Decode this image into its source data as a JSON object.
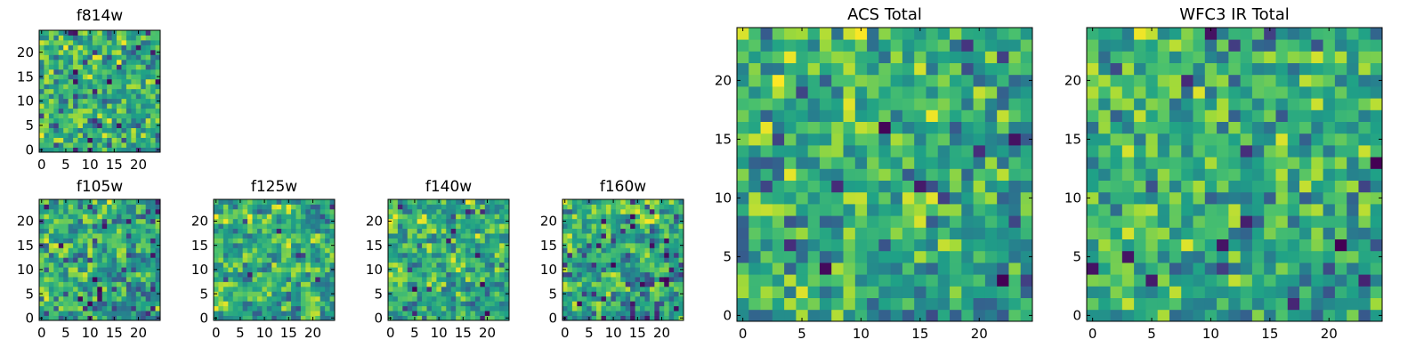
{
  "colors": {
    "colormap": [
      "#440154",
      "#46327e",
      "#365c8d",
      "#277f8e",
      "#1fa187",
      "#4ac16d",
      "#a0da39",
      "#fde725"
    ],
    "frame": "#000000",
    "background": "#ffffff"
  },
  "chart_data": [
    {
      "type": "heatmap",
      "title": "f814w",
      "grid_size": 25,
      "xlim": [
        0,
        24
      ],
      "ylim": [
        0,
        24
      ],
      "xticks": [
        "0",
        "5",
        "10",
        "15",
        "20"
      ],
      "yticks": [
        "0",
        "5",
        "10",
        "15",
        "20"
      ],
      "seed": 11,
      "cell_scale": 1,
      "low_bias": 0.05
    },
    {
      "type": "heatmap",
      "title": "f105w",
      "grid_size": 25,
      "xlim": [
        0,
        24
      ],
      "ylim": [
        0,
        24
      ],
      "xticks": [
        "0",
        "5",
        "10",
        "15",
        "20"
      ],
      "yticks": [
        "0",
        "5",
        "10",
        "15",
        "20"
      ],
      "seed": 23,
      "cell_scale": 2,
      "low_bias": 0.1
    },
    {
      "type": "heatmap",
      "title": "f125w",
      "grid_size": 25,
      "xlim": [
        0,
        24
      ],
      "ylim": [
        0,
        24
      ],
      "xticks": [
        "0",
        "5",
        "10",
        "15",
        "20"
      ],
      "yticks": [
        "0",
        "5",
        "10",
        "15",
        "20"
      ],
      "seed": 37,
      "cell_scale": 2,
      "low_bias": 0.02
    },
    {
      "type": "heatmap",
      "title": "f140w",
      "grid_size": 25,
      "xlim": [
        0,
        24
      ],
      "ylim": [
        0,
        24
      ],
      "xticks": [
        "0",
        "5",
        "10",
        "15",
        "20"
      ],
      "yticks": [
        "0",
        "5",
        "10",
        "15",
        "20"
      ],
      "seed": 41,
      "cell_scale": 2,
      "low_bias": 0.04
    },
    {
      "type": "heatmap",
      "title": "f160w",
      "grid_size": 25,
      "xlim": [
        0,
        24
      ],
      "ylim": [
        0,
        24
      ],
      "xticks": [
        "0",
        "5",
        "10",
        "15",
        "20"
      ],
      "yticks": [
        "0",
        "5",
        "10",
        "15",
        "20"
      ],
      "seed": 53,
      "cell_scale": 2,
      "low_bias": 0.12
    },
    {
      "type": "heatmap",
      "title": "ACS Total",
      "grid_size": 25,
      "xlim": [
        0,
        24
      ],
      "ylim": [
        0,
        24
      ],
      "xticks": [
        "0",
        "5",
        "10",
        "15",
        "20"
      ],
      "yticks": [
        "0",
        "5",
        "10",
        "15",
        "20"
      ],
      "seed": 67,
      "cell_scale": 1,
      "low_bias": 0.03
    },
    {
      "type": "heatmap",
      "title": "WFC3 IR Total",
      "grid_size": 25,
      "xlim": [
        0,
        24
      ],
      "ylim": [
        0,
        24
      ],
      "xticks": [
        "0",
        "5",
        "10",
        "15",
        "20"
      ],
      "yticks": [
        "0",
        "5",
        "10",
        "15",
        "20"
      ],
      "seed": 79,
      "cell_scale": 1,
      "low_bias": 0.04
    }
  ]
}
